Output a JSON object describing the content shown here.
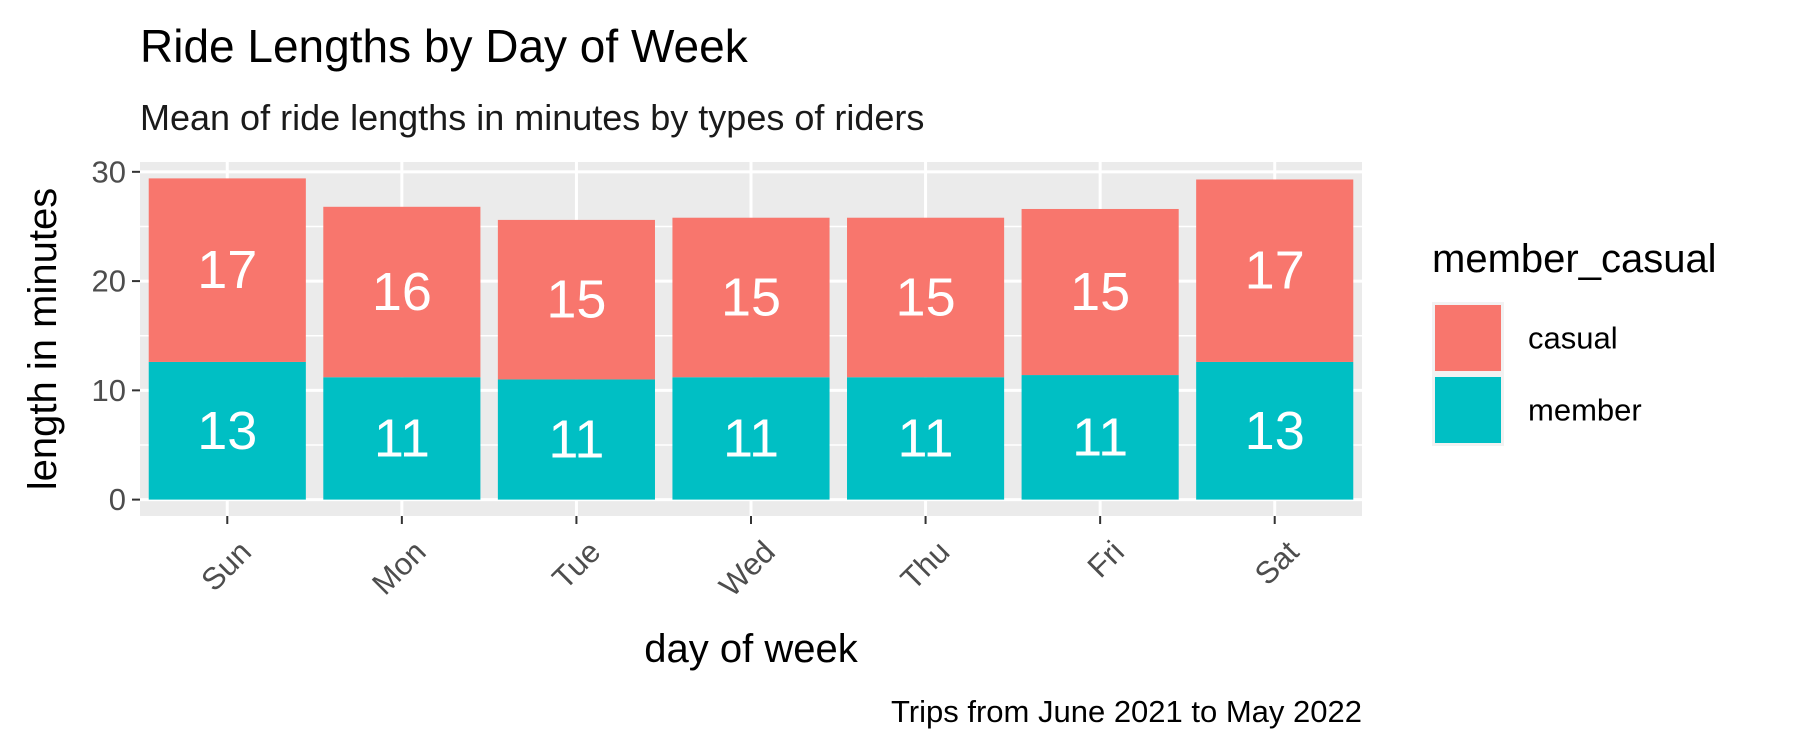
{
  "chart_data": {
    "type": "bar",
    "stacked": true,
    "title": "Ride Lengths by Day of Week",
    "subtitle": "Mean of ride lengths in minutes by types of riders",
    "xlabel": "day of week",
    "ylabel": "length in minutes",
    "caption": "Trips from June 2021 to May 2022",
    "categories": [
      "Sun",
      "Mon",
      "Tue",
      "Wed",
      "Thu",
      "Fri",
      "Sat"
    ],
    "series": [
      {
        "name": "member",
        "color": "#00BFC4",
        "values": [
          12.6,
          11.2,
          11.0,
          11.2,
          11.2,
          11.4,
          12.6
        ],
        "labels": [
          "13",
          "11",
          "11",
          "11",
          "11",
          "11",
          "13"
        ]
      },
      {
        "name": "casual",
        "color": "#F8766D",
        "values": [
          16.8,
          15.6,
          14.6,
          14.6,
          14.6,
          15.2,
          16.7
        ],
        "labels": [
          "17",
          "16",
          "15",
          "15",
          "15",
          "15",
          "17"
        ]
      }
    ],
    "yticks": [
      0,
      10,
      20,
      30
    ],
    "ytick_labels": [
      "0",
      "10",
      "20",
      "30"
    ],
    "ylim": [
      -1.5,
      30.9
    ],
    "legend": {
      "title": "member_casual",
      "position": "right",
      "items": [
        {
          "label": "casual",
          "color": "#F8766D"
        },
        {
          "label": "member",
          "color": "#00BFC4"
        }
      ]
    },
    "panel_background": "#EBEBEB",
    "grid": true
  }
}
